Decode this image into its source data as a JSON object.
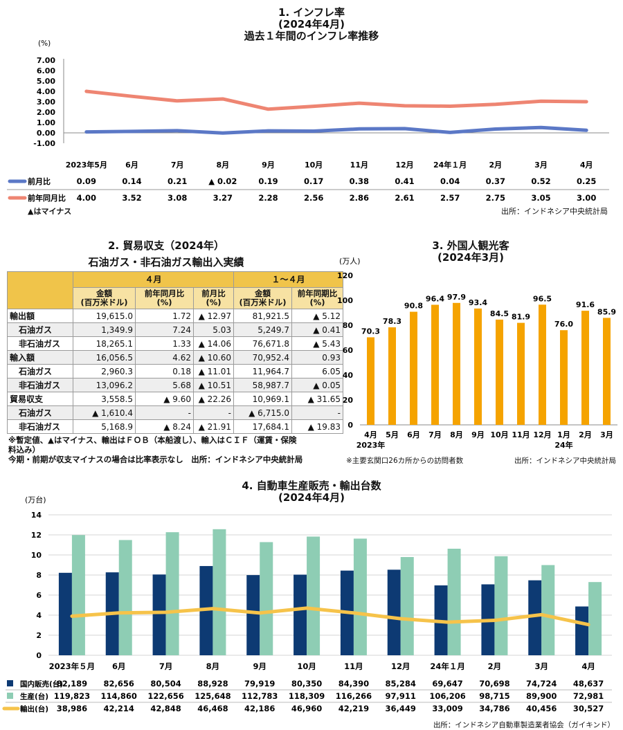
{
  "inflation": {
    "title1": "1. インフレ率",
    "title2": "(2024年4月)",
    "title3": "過去１年間のインフレ率推移",
    "unit": "(%)",
    "note": "▲はマイナス",
    "source": "出所：インドネシア中央統計局"
  },
  "trade": {
    "title": "2. 貿易収支（2024年）",
    "subtitle": "石油ガス・非石油ガス輸出入実績",
    "period1": "４月",
    "period2": "１～４月",
    "col_amount": "金額\n(百万米ドル)",
    "col_yoy": "前年同月比\n(%)",
    "col_mom": "前月比\n(%)",
    "col_amount2": "金額\n(百万米ドル)",
    "col_yoy2": "前年同期比\n(%)",
    "rows": [
      {
        "label": "輸出額",
        "indent": false,
        "shade": false,
        "v": [
          "19,615.0",
          "1.72",
          "▲ 12.97",
          "81,921.5",
          "▲ 5.12"
        ]
      },
      {
        "label": "石油ガス",
        "indent": true,
        "shade": true,
        "v": [
          "1,349.9",
          "7.24",
          "5.03",
          "5,249.7",
          "▲ 0.41"
        ]
      },
      {
        "label": "非石油ガス",
        "indent": true,
        "shade": false,
        "v": [
          "18,265.1",
          "1.33",
          "▲ 14.06",
          "76,671.8",
          "▲ 5.43"
        ]
      },
      {
        "label": "輸入額",
        "indent": false,
        "shade": true,
        "v": [
          "16,056.5",
          "4.62",
          "▲ 10.60",
          "70,952.4",
          "0.93"
        ]
      },
      {
        "label": "石油ガス",
        "indent": true,
        "shade": false,
        "v": [
          "2,960.3",
          "0.18",
          "▲ 11.01",
          "11,964.7",
          "6.05"
        ]
      },
      {
        "label": "非石油ガス",
        "indent": true,
        "shade": true,
        "v": [
          "13,096.2",
          "5.68",
          "▲ 10.51",
          "58,987.7",
          "▲ 0.05"
        ]
      },
      {
        "label": "貿易収支",
        "indent": false,
        "shade": false,
        "v": [
          "3,558.5",
          "▲ 9.60",
          "▲ 22.26",
          "10,969.1",
          "▲ 31.65"
        ]
      },
      {
        "label": "石油ガス",
        "indent": true,
        "shade": true,
        "v": [
          "▲ 1,610.4",
          "-",
          "-",
          "▲ 6,715.0",
          "-"
        ]
      },
      {
        "label": "非石油ガス",
        "indent": true,
        "shade": false,
        "v": [
          "5,168.9",
          "▲ 8.24",
          "▲ 21.91",
          "17,684.1",
          "▲ 19.83"
        ]
      }
    ],
    "note1": "※暫定値、▲はマイナス、輸出はＦＯＢ（本船渡し）、輸入はＣＩＦ（運賃・保険",
    "note2": "料込み）",
    "note3": "今期・前期が収支マイナスの場合は比率表示なし　出所：インドネシア中央統計局"
  },
  "tourism": {
    "title1": "3. 外国人観光客",
    "title2": "(2024年3月)",
    "unit": "(万人)",
    "note": "※主要玄関口26カ所からの訪問者数",
    "source": "出所：インドネシア中央統計局",
    "bar_color": "#f5a300"
  },
  "auto": {
    "title1": "4. 自動車生産販売・輸出台数",
    "title2": "(2024年4月)",
    "unit": "(万台)",
    "source": "出所：インドネシア自動車製造業者協会（ガイキンド）",
    "colors": {
      "domestic": "#0d3a73",
      "production": "#8ecdb4",
      "export": "#f6c34a"
    }
  },
  "chart_data": [
    {
      "type": "line",
      "categories": [
        "2023年5月",
        "6月",
        "7月",
        "8月",
        "9月",
        "10月",
        "11月",
        "12月",
        "24年１月",
        "2月",
        "3月",
        "4月"
      ],
      "series": [
        {
          "name": "前月比",
          "values": [
            0.09,
            0.14,
            0.21,
            -0.02,
            0.19,
            0.17,
            0.38,
            0.41,
            0.04,
            0.37,
            0.52,
            0.25
          ],
          "labels": [
            "0.09",
            "0.14",
            "0.21",
            "▲ 0.02",
            "0.19",
            "0.17",
            "0.38",
            "0.41",
            "0.04",
            "0.37",
            "0.52",
            "0.25"
          ],
          "color": "#5b78c6"
        },
        {
          "name": "前年同月比",
          "values": [
            4.0,
            3.52,
            3.08,
            3.27,
            2.28,
            2.56,
            2.86,
            2.61,
            2.57,
            2.75,
            3.05,
            3.0
          ],
          "labels": [
            "4.00",
            "3.52",
            "3.08",
            "3.27",
            "2.28",
            "2.56",
            "2.86",
            "2.61",
            "2.57",
            "2.75",
            "3.05",
            "3.00"
          ],
          "color": "#ee8572"
        }
      ],
      "ylim": [
        -1,
        7
      ],
      "yticks": [
        "-1.00",
        "0.00",
        "1.00",
        "2.00",
        "3.00",
        "4.00",
        "5.00",
        "6.00",
        "7.00"
      ],
      "grid": false
    },
    {
      "type": "bar",
      "categories": [
        "4月",
        "5月",
        "6月",
        "7月",
        "8月",
        "9月",
        "10月",
        "11月",
        "12月",
        "1月",
        "2月",
        "3月"
      ],
      "year_labels": [
        "2023年",
        "24年"
      ],
      "values": [
        70.3,
        78.3,
        90.8,
        96.4,
        97.9,
        93.4,
        84.5,
        81.9,
        96.5,
        76.0,
        91.6,
        85.9
      ],
      "value_labels": [
        "70.3",
        "78.3",
        "90.8",
        "96.4",
        "97.9",
        "93.4",
        "84.5",
        "81.9",
        "96.5",
        "76.0",
        "91.6",
        "85.9"
      ],
      "ylim": [
        0,
        120
      ],
      "yticks": [
        "0",
        "20",
        "40",
        "60",
        "80",
        "100",
        "120"
      ]
    },
    {
      "type": "bar",
      "categories": [
        "2023年５月",
        "6月",
        "7月",
        "8月",
        "9月",
        "10月",
        "11月",
        "12月",
        "24年１月",
        "2月",
        "3月",
        "4月"
      ],
      "series": [
        {
          "name": "国内販売(台)",
          "kind": "bar",
          "values": [
            82189,
            82656,
            80504,
            88928,
            79919,
            80350,
            84390,
            85284,
            69647,
            70698,
            74724,
            48637
          ],
          "labels": [
            "82,189",
            "82,656",
            "80,504",
            "88,928",
            "79,919",
            "80,350",
            "84,390",
            "85,284",
            "69,647",
            "70,698",
            "74,724",
            "48,637"
          ]
        },
        {
          "name": "生産(台)",
          "kind": "bar",
          "values": [
            119823,
            114860,
            122656,
            125648,
            112783,
            118309,
            116266,
            97911,
            106206,
            98715,
            89900,
            72981
          ],
          "labels": [
            "119,823",
            "114,860",
            "122,656",
            "125,648",
            "112,783",
            "118,309",
            "116,266",
            "97,911",
            "106,206",
            "98,715",
            "89,900",
            "72,981"
          ]
        },
        {
          "name": "輸出(台)",
          "kind": "line",
          "values": [
            38986,
            42214,
            42848,
            46468,
            42186,
            46960,
            42219,
            36449,
            33009,
            34786,
            40456,
            30527
          ],
          "labels": [
            "38,986",
            "42,214",
            "42,848",
            "46,468",
            "42,186",
            "46,960",
            "42,219",
            "36,449",
            "33,009",
            "34,786",
            "40,456",
            "30,527"
          ]
        }
      ],
      "ylim": [
        0,
        14
      ],
      "yticks": [
        "0",
        "2",
        "4",
        "6",
        "8",
        "10",
        "12",
        "14"
      ],
      "grid": true
    }
  ]
}
